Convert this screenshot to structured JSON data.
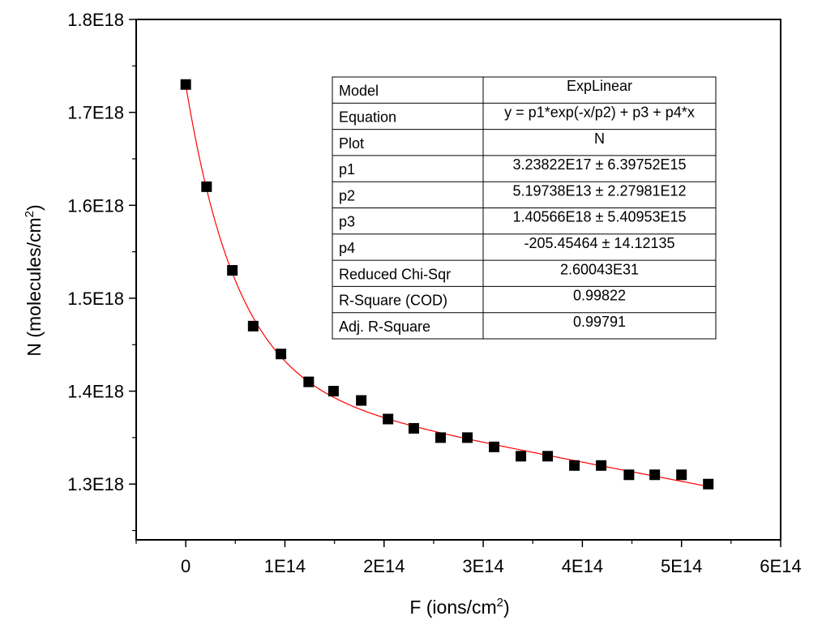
{
  "chart_data": {
    "type": "scatter",
    "xlabel": {
      "main": "F (ions/cm",
      "sup": "2",
      "end": ")"
    },
    "ylabel": {
      "main": "N (molecules/cm",
      "sup": "2",
      "end": ")"
    },
    "xlim": [
      -50000000000000.0,
      600000000000000.0
    ],
    "ylim": [
      1.24e+18,
      1.8e+18
    ],
    "x_ticks": [
      0,
      100000000000000.0,
      200000000000000.0,
      300000000000000.0,
      400000000000000.0,
      500000000000000.0,
      600000000000000.0
    ],
    "x_tick_labels": [
      "0",
      "1E14",
      "2E14",
      "3E14",
      "4E14",
      "5E14",
      "6E14"
    ],
    "y_ticks": [
      1.3e+18,
      1.4e+18,
      1.5e+18,
      1.6e+18,
      1.7e+18,
      1.8e+18
    ],
    "y_tick_labels": [
      "1.3E18",
      "1.4E18",
      "1.5E18",
      "1.6E18",
      "1.7E18",
      "1.8E18"
    ],
    "grid": false,
    "marker_color": "#000000",
    "fit_color": "#ff0000",
    "points": [
      [
        0,
        1.73e+18
      ],
      [
        21000000000000.0,
        1.62e+18
      ],
      [
        47000000000000.0,
        1.53e+18
      ],
      [
        68000000000000.0,
        1.47e+18
      ],
      [
        96000000000000.0,
        1.44e+18
      ],
      [
        124000000000000.0,
        1.41e+18
      ],
      [
        149000000000000.0,
        1.4e+18
      ],
      [
        177000000000000.0,
        1.39e+18
      ],
      [
        204000000000000.0,
        1.37e+18
      ],
      [
        230000000000000.0,
        1.36e+18
      ],
      [
        257000000000000.0,
        1.35e+18
      ],
      [
        284000000000000.0,
        1.35e+18
      ],
      [
        311000000000000.0,
        1.34e+18
      ],
      [
        338000000000000.0,
        1.33e+18
      ],
      [
        365000000000000.0,
        1.33e+18
      ],
      [
        392000000000000.0,
        1.32e+18
      ],
      [
        419000000000000.0,
        1.32e+18
      ],
      [
        447000000000000.0,
        1.31e+18
      ],
      [
        473000000000000.0,
        1.31e+18
      ],
      [
        500000000000000.0,
        1.31e+18
      ],
      [
        527000000000000.0,
        1.3e+18
      ]
    ],
    "fit": {
      "p1": 3.23822e+17,
      "p2": 51973800000000.0,
      "p3": 1.40566e+18,
      "p4": -205.45464,
      "x_range": [
        0,
        527000000000000.0
      ]
    },
    "table": {
      "rows": [
        [
          "Model",
          "ExpLinear"
        ],
        [
          "Equation",
          "y = p1*exp(-x/p2) + p3 + p4*x"
        ],
        [
          "Plot",
          "N"
        ],
        [
          "p1",
          "3.23822E17 ± 6.39752E15"
        ],
        [
          "p2",
          "5.19738E13 ± 2.27981E12"
        ],
        [
          "p3",
          "1.40566E18 ± 5.40953E15"
        ],
        [
          "p4",
          "-205.45464 ± 14.12135"
        ],
        [
          "Reduced Chi-Sqr",
          "2.60043E31"
        ],
        [
          "R-Square (COD)",
          "0.99822"
        ],
        [
          "Adj. R-Square",
          "0.99791"
        ]
      ]
    }
  }
}
